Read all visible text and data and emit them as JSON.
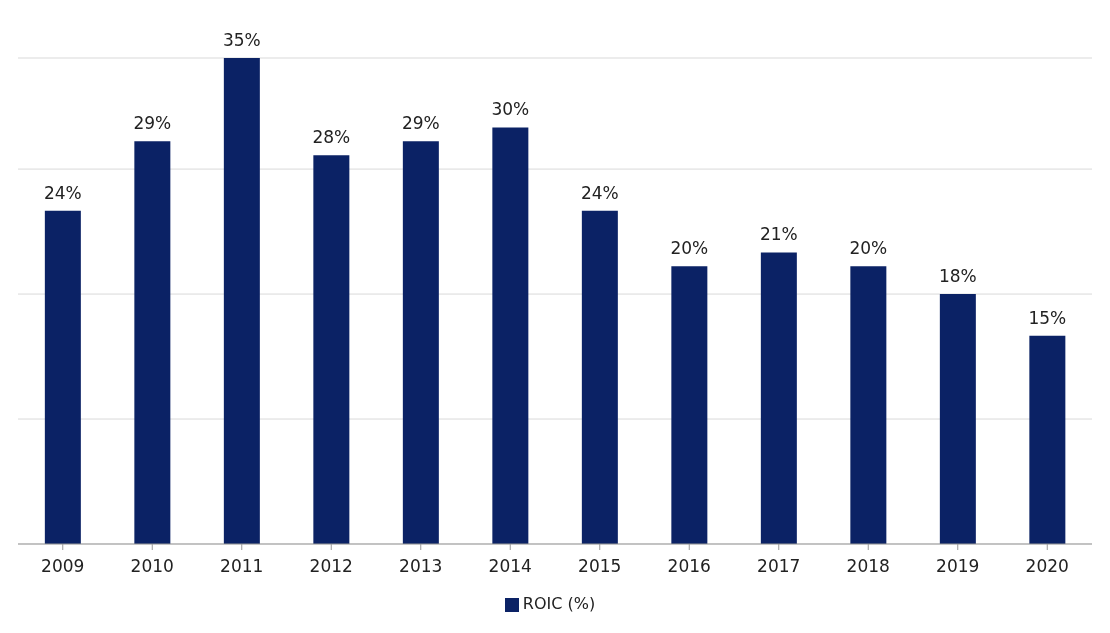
{
  "chart_data": {
    "type": "bar",
    "categories": [
      "2009",
      "2010",
      "2011",
      "2012",
      "2013",
      "2014",
      "2015",
      "2016",
      "2017",
      "2018",
      "2019",
      "2020"
    ],
    "series": [
      {
        "name": "ROIC (%)",
        "color": "#0b2265",
        "values": [
          24,
          29,
          35,
          28,
          29,
          30,
          24,
          20,
          21,
          20,
          18,
          15
        ],
        "value_labels": [
          "24%",
          "29%",
          "35%",
          "28%",
          "29%",
          "30%",
          "24%",
          "20%",
          "21%",
          "20%",
          "18%",
          "15%"
        ]
      }
    ],
    "grid": "y",
    "legend": "bottom"
  }
}
